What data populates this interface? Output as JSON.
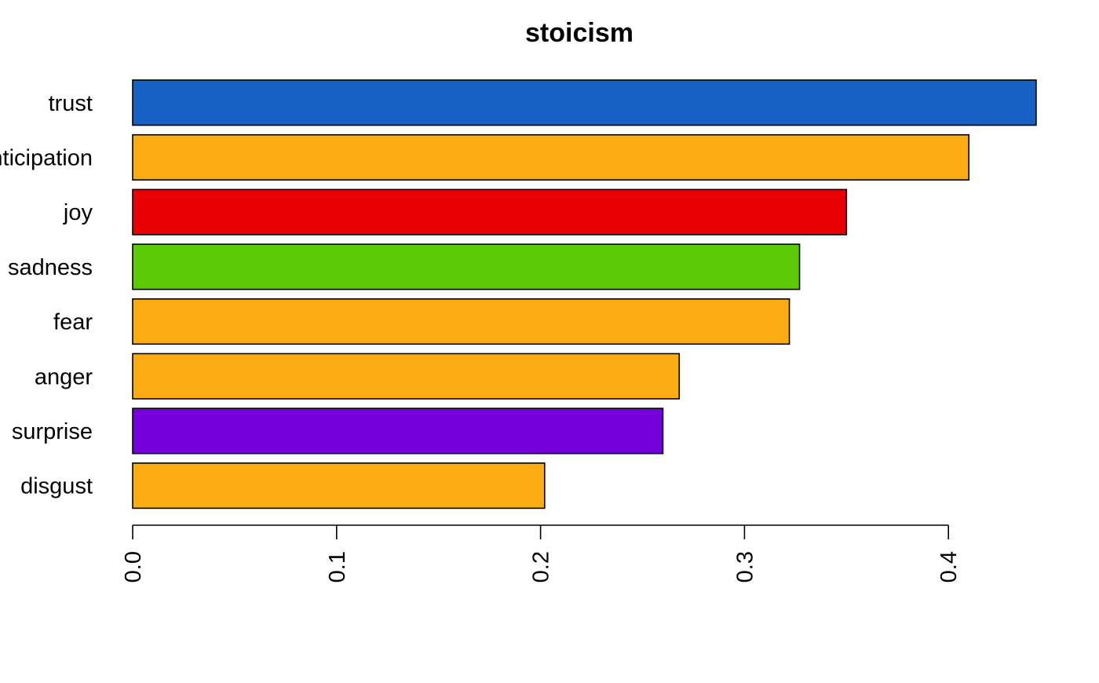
{
  "chart_data": {
    "type": "bar",
    "orientation": "horizontal",
    "title": "stoicism",
    "xlabel": "",
    "ylabel": "",
    "categories": [
      "trust",
      "anticipation",
      "joy",
      "sadness",
      "fear",
      "anger",
      "surprise",
      "disgust"
    ],
    "values": [
      0.443,
      0.41,
      0.35,
      0.327,
      0.322,
      0.268,
      0.26,
      0.202
    ],
    "colors": [
      "#1760C4",
      "#FBAC13",
      "#E90005",
      "#5BCA07",
      "#FBAC13",
      "#FBAC13",
      "#7600DC",
      "#FBAC13"
    ],
    "xlim": [
      0,
      0.4
    ],
    "xticks": [
      0.0,
      0.1,
      0.2,
      0.3,
      0.4
    ],
    "xtick_labels": [
      "0.0",
      "0.1",
      "0.2",
      "0.3",
      "0.4"
    ],
    "grid": false,
    "legend": "none"
  }
}
